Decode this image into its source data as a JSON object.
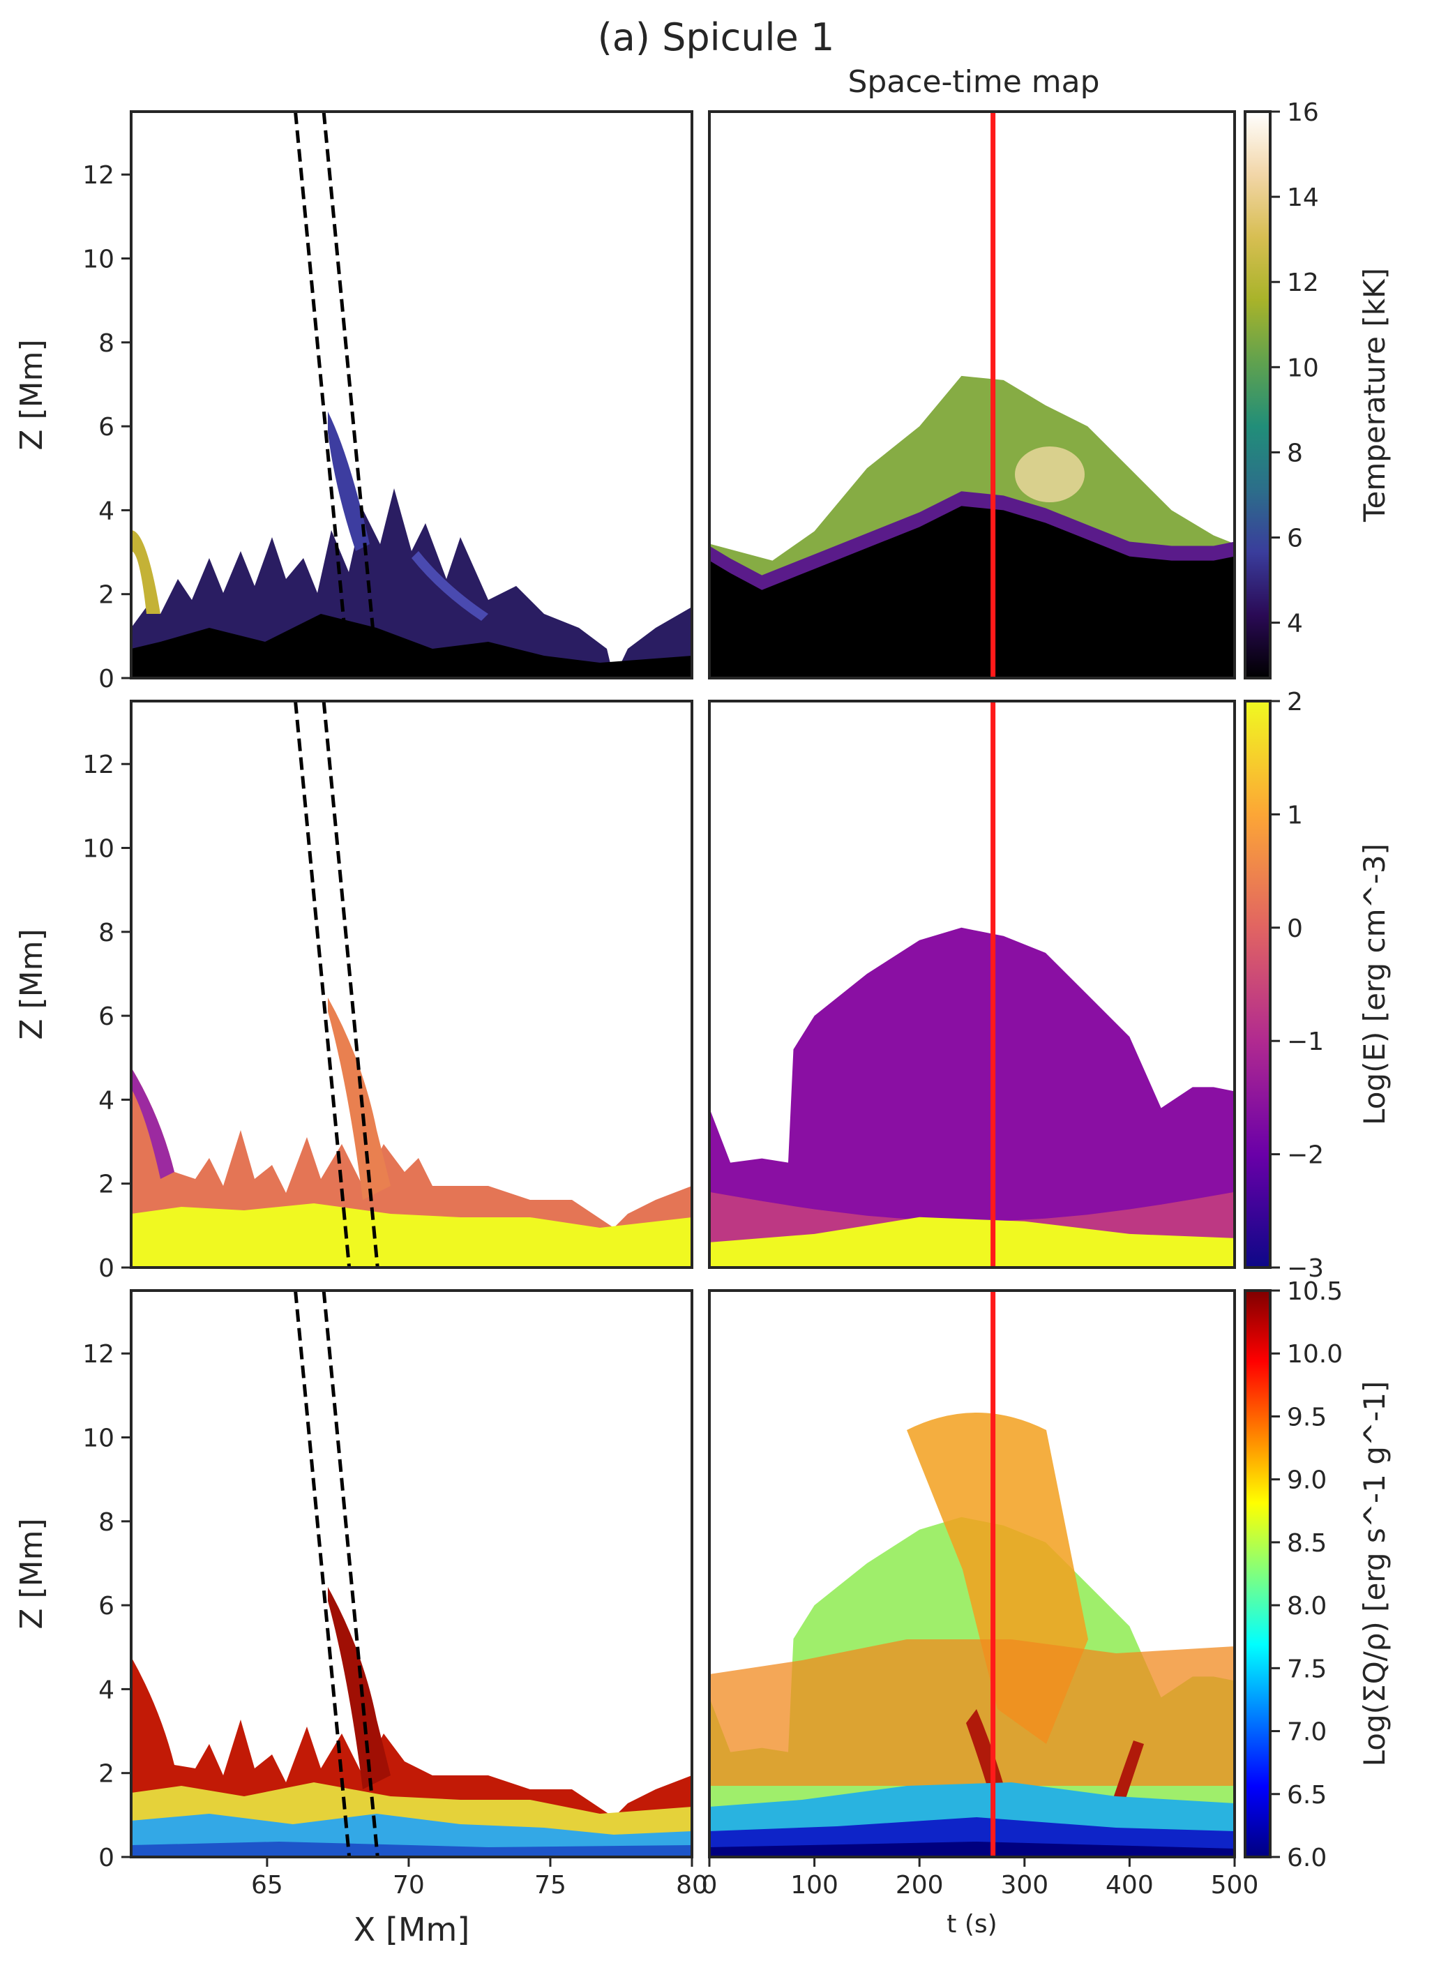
{
  "figure": {
    "title": "(a) Spicule 1",
    "subtitle": "Space-time map"
  },
  "chart_data": [
    {
      "type": "heatmap",
      "panel": "temperature-map",
      "xlabel": "",
      "ylabel": "Z [Mm]",
      "xlim": [
        60.2,
        80
      ],
      "ylim": [
        0,
        13.5
      ],
      "yticks": [
        0,
        2,
        4,
        6,
        8,
        10,
        12
      ],
      "slit_x_at_top": [
        66.0,
        67.0
      ],
      "slit_x_at_bottom": [
        67.9,
        68.9
      ],
      "spicule_tip": [
        67.0,
        6.3
      ],
      "features": "chromospheric spicules up to ~6.3 Mm with surrounding corona"
    },
    {
      "type": "heatmap",
      "panel": "temperature-spacetime",
      "title": "Space-time map",
      "xlim": [
        0,
        500
      ],
      "ylim": [
        0,
        13.5
      ],
      "marker_time": 270,
      "cool_boundary": {
        "t": [
          0,
          20,
          50,
          100,
          150,
          200,
          240,
          280,
          320,
          360,
          400,
          440,
          480,
          500
        ],
        "z": [
          2.8,
          2.5,
          2.1,
          2.6,
          3.1,
          3.6,
          4.1,
          4.0,
          3.7,
          3.3,
          2.9,
          2.8,
          2.8,
          2.9
        ]
      },
      "hot_layer_top": {
        "t": [
          0,
          60,
          100,
          150,
          200,
          240,
          280,
          320,
          360,
          400,
          440,
          480,
          500
        ],
        "z": [
          3.2,
          2.8,
          3.5,
          5.0,
          6.0,
          7.2,
          7.1,
          6.5,
          6.0,
          5.0,
          4.0,
          3.4,
          3.2
        ]
      }
    },
    {
      "type": "heatmap",
      "panel": "energy-map",
      "xlabel": "",
      "ylabel": "Z [Mm]",
      "xlim": [
        60.2,
        80
      ],
      "ylim": [
        0,
        13.5
      ],
      "yticks": [
        0,
        2,
        4,
        6,
        8,
        10,
        12
      ]
    },
    {
      "type": "heatmap",
      "panel": "energy-spacetime",
      "xlim": [
        0,
        500
      ],
      "ylim": [
        0,
        13.5
      ],
      "marker_time": 270,
      "plasma_top": {
        "t": [
          0,
          20,
          50,
          75,
          80,
          100,
          150,
          200,
          240,
          280,
          320,
          360,
          400,
          430,
          460,
          480,
          500
        ],
        "z": [
          3.8,
          2.5,
          2.6,
          2.5,
          5.2,
          6.0,
          7.0,
          7.8,
          8.1,
          7.9,
          7.5,
          6.5,
          5.5,
          3.8,
          4.3,
          4.3,
          4.2
        ]
      },
      "dense_layer_top": {
        "t": [
          0,
          100,
          200,
          300,
          400,
          500
        ],
        "z": [
          0.6,
          0.8,
          1.2,
          1.1,
          0.8,
          0.7
        ]
      }
    },
    {
      "type": "heatmap",
      "panel": "heating-map",
      "xlabel": "X [Mm]",
      "ylabel": "Z [Mm]",
      "xlim": [
        60.2,
        80
      ],
      "ylim": [
        0,
        13.5
      ],
      "xticks": [
        65,
        70,
        75,
        80
      ],
      "yticks": [
        0,
        2,
        4,
        6,
        8,
        10,
        12
      ]
    },
    {
      "type": "heatmap",
      "panel": "heating-spacetime",
      "xlabel": "t (s)",
      "xlim": [
        0,
        500
      ],
      "ylim": [
        0,
        13.5
      ],
      "xticks": [
        0,
        100,
        200,
        300,
        400,
        500
      ],
      "marker_time": 270
    }
  ],
  "colorbars": [
    {
      "name": "temperature",
      "label": "Temperature [kK]",
      "range": [
        2.7,
        16
      ],
      "ticks": [
        4,
        6,
        8,
        10,
        12,
        14,
        16
      ],
      "tick_labels": [
        "4",
        "6",
        "8",
        "10",
        "12",
        "14",
        "16"
      ],
      "colors": [
        "#000000",
        "#2a0a55",
        "#3a3d9c",
        "#2c6e8a",
        "#218e79",
        "#5fa14f",
        "#a8b32a",
        "#d7be52",
        "#f2d6a8",
        "#ffffff"
      ]
    },
    {
      "name": "energy",
      "label": "Log(E) [erg cm^-3]",
      "range": [
        -3,
        2
      ],
      "ticks": [
        -3,
        -2,
        -1,
        0,
        1,
        2
      ],
      "tick_labels": [
        "−3",
        "−2",
        "−1",
        "0",
        "1",
        "2"
      ],
      "colors": [
        "#0d0887",
        "#6a00a8",
        "#b12a90",
        "#e16462",
        "#fca636",
        "#f0f921"
      ]
    },
    {
      "name": "heating",
      "label": "Log(ΣQ/ρ) [erg s^-1 g^-1]",
      "range": [
        6,
        10.5
      ],
      "ticks": [
        6,
        6.5,
        7,
        7.5,
        8,
        8.5,
        9,
        9.5,
        10,
        10.5
      ],
      "tick_labels": [
        "6.0",
        "6.5",
        "7.0",
        "7.5",
        "8.0",
        "8.5",
        "9.0",
        "9.5",
        "10.0",
        "10.5"
      ],
      "colors": [
        "#00007f",
        "#0000ff",
        "#007fff",
        "#00ffff",
        "#7fff7f",
        "#ffff00",
        "#ff7f00",
        "#ff0000",
        "#7f0000"
      ]
    }
  ],
  "colors": {
    "marker": "#ff1a1a",
    "slit": "#000000",
    "frame": "#262626"
  }
}
